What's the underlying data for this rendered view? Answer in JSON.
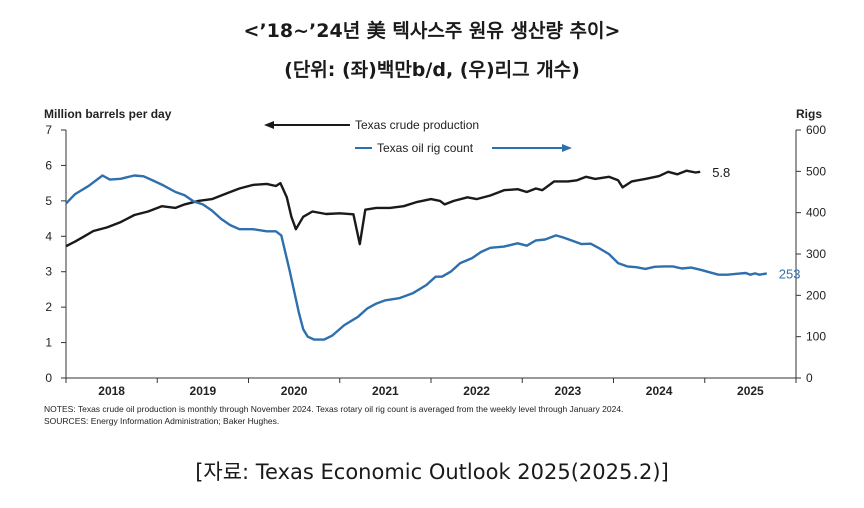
{
  "title_line1": "<’18~’24년 美 텍사스주 원유 생산량 추이>",
  "title_line2": "(단위: (좌)백만b/d, (우)리그 개수)",
  "source_caption": "[자료: Texas Economic Outlook 2025(2025.2)]",
  "chart_data": {
    "type": "line",
    "left_axis_label": "Million barrels per day",
    "right_axis_label": "Rigs",
    "left_ylim": [
      0,
      7
    ],
    "left_ticks": [
      "0",
      "1",
      "2",
      "3",
      "4",
      "5",
      "6",
      "7"
    ],
    "right_ylim": [
      0,
      600
    ],
    "right_ticks": [
      "0",
      "100",
      "200",
      "300",
      "400",
      "500",
      "600"
    ],
    "xlim": [
      2017.5,
      2025.5
    ],
    "x_ticks": [
      "2018",
      "2019",
      "2020",
      "2021",
      "2022",
      "2023",
      "2024",
      "2025"
    ],
    "grid": false,
    "series": [
      {
        "name": "Texas crude production",
        "axis": "left",
        "color": "#1a1a1a",
        "end_label": "5.8",
        "legend_arrow": "left",
        "points": [
          [
            2017.5,
            3.72
          ],
          [
            2017.6,
            3.85
          ],
          [
            2017.7,
            4.0
          ],
          [
            2017.8,
            4.15
          ],
          [
            2017.95,
            4.25
          ],
          [
            2018.1,
            4.4
          ],
          [
            2018.25,
            4.6
          ],
          [
            2018.4,
            4.7
          ],
          [
            2018.55,
            4.85
          ],
          [
            2018.7,
            4.8
          ],
          [
            2018.8,
            4.9
          ],
          [
            2018.95,
            5.0
          ],
          [
            2019.1,
            5.05
          ],
          [
            2019.25,
            5.2
          ],
          [
            2019.4,
            5.35
          ],
          [
            2019.55,
            5.45
          ],
          [
            2019.7,
            5.48
          ],
          [
            2019.8,
            5.42
          ],
          [
            2019.85,
            5.5
          ],
          [
            2019.92,
            5.1
          ],
          [
            2019.97,
            4.55
          ],
          [
            2020.02,
            4.2
          ],
          [
            2020.1,
            4.55
          ],
          [
            2020.2,
            4.7
          ],
          [
            2020.35,
            4.63
          ],
          [
            2020.5,
            4.65
          ],
          [
            2020.65,
            4.62
          ],
          [
            2020.72,
            3.78
          ],
          [
            2020.78,
            4.75
          ],
          [
            2020.9,
            4.8
          ],
          [
            2021.05,
            4.8
          ],
          [
            2021.2,
            4.85
          ],
          [
            2021.35,
            4.97
          ],
          [
            2021.5,
            5.05
          ],
          [
            2021.6,
            5.0
          ],
          [
            2021.65,
            4.9
          ],
          [
            2021.75,
            5.0
          ],
          [
            2021.9,
            5.1
          ],
          [
            2022.0,
            5.05
          ],
          [
            2022.15,
            5.15
          ],
          [
            2022.3,
            5.3
          ],
          [
            2022.45,
            5.33
          ],
          [
            2022.55,
            5.25
          ],
          [
            2022.65,
            5.35
          ],
          [
            2022.72,
            5.3
          ],
          [
            2022.85,
            5.55
          ],
          [
            2023.0,
            5.55
          ],
          [
            2023.1,
            5.58
          ],
          [
            2023.2,
            5.68
          ],
          [
            2023.3,
            5.62
          ],
          [
            2023.45,
            5.68
          ],
          [
            2023.55,
            5.58
          ],
          [
            2023.6,
            5.38
          ],
          [
            2023.7,
            5.55
          ],
          [
            2023.85,
            5.62
          ],
          [
            2024.0,
            5.7
          ],
          [
            2024.1,
            5.82
          ],
          [
            2024.2,
            5.75
          ],
          [
            2024.3,
            5.85
          ],
          [
            2024.4,
            5.8
          ],
          [
            2024.45,
            5.82
          ]
        ]
      },
      {
        "name": "Texas oil rig count",
        "axis": "right",
        "color": "#2e6fad",
        "end_label": "253",
        "legend_arrow": "right",
        "points": [
          [
            2017.5,
            422
          ],
          [
            2017.6,
            445
          ],
          [
            2017.75,
            465
          ],
          [
            2017.9,
            490
          ],
          [
            2017.98,
            480
          ],
          [
            2018.1,
            482
          ],
          [
            2018.25,
            490
          ],
          [
            2018.35,
            488
          ],
          [
            2018.45,
            478
          ],
          [
            2018.55,
            468
          ],
          [
            2018.7,
            450
          ],
          [
            2018.8,
            442
          ],
          [
            2018.9,
            427
          ],
          [
            2019.0,
            420
          ],
          [
            2019.1,
            405
          ],
          [
            2019.2,
            385
          ],
          [
            2019.3,
            370
          ],
          [
            2019.4,
            360
          ],
          [
            2019.55,
            360
          ],
          [
            2019.7,
            355
          ],
          [
            2019.8,
            355
          ],
          [
            2019.86,
            345
          ],
          [
            2019.95,
            260
          ],
          [
            2020.05,
            160
          ],
          [
            2020.1,
            118
          ],
          [
            2020.15,
            100
          ],
          [
            2020.22,
            93
          ],
          [
            2020.33,
            93
          ],
          [
            2020.42,
            103
          ],
          [
            2020.55,
            128
          ],
          [
            2020.7,
            148
          ],
          [
            2020.8,
            168
          ],
          [
            2020.9,
            180
          ],
          [
            2021.0,
            188
          ],
          [
            2021.15,
            193
          ],
          [
            2021.3,
            205
          ],
          [
            2021.45,
            225
          ],
          [
            2021.55,
            245
          ],
          [
            2021.62,
            245
          ],
          [
            2021.72,
            258
          ],
          [
            2021.82,
            278
          ],
          [
            2021.95,
            290
          ],
          [
            2022.05,
            305
          ],
          [
            2022.15,
            315
          ],
          [
            2022.3,
            318
          ],
          [
            2022.45,
            326
          ],
          [
            2022.55,
            320
          ],
          [
            2022.65,
            333
          ],
          [
            2022.75,
            335
          ],
          [
            2022.87,
            345
          ],
          [
            2022.95,
            340
          ],
          [
            2023.05,
            332
          ],
          [
            2023.15,
            324
          ],
          [
            2023.25,
            325
          ],
          [
            2023.35,
            313
          ],
          [
            2023.45,
            300
          ],
          [
            2023.55,
            278
          ],
          [
            2023.65,
            270
          ],
          [
            2023.75,
            268
          ],
          [
            2023.85,
            264
          ],
          [
            2023.95,
            269
          ],
          [
            2024.05,
            270
          ],
          [
            2024.15,
            270
          ],
          [
            2024.25,
            265
          ],
          [
            2024.35,
            267
          ],
          [
            2024.45,
            262
          ],
          [
            2024.55,
            256
          ],
          [
            2024.65,
            250
          ],
          [
            2024.75,
            250
          ],
          [
            2024.85,
            252
          ],
          [
            2024.95,
            254
          ],
          [
            2025.0,
            250
          ],
          [
            2025.05,
            253
          ],
          [
            2025.1,
            250
          ],
          [
            2025.18,
            253
          ]
        ]
      }
    ],
    "notes": "NOTES: Texas crude oil production is monthly through November 2024. Texas rotary oil rig count is averaged from the weekly level through January 2024.",
    "sources": "SOURCES: Energy Information Administration; Baker Hughes."
  }
}
